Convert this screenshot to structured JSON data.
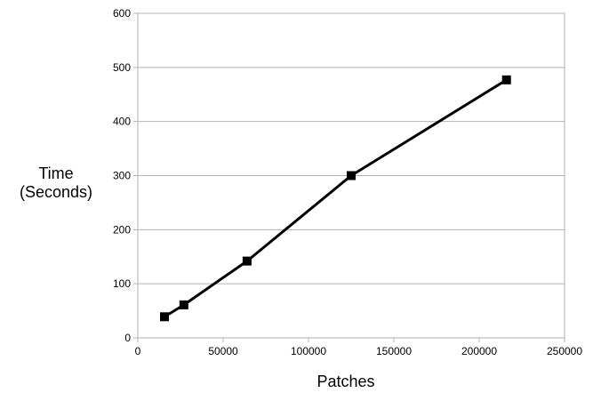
{
  "chart_data": {
    "type": "line",
    "title": "",
    "xlabel": "Patches",
    "ylabel_lines": [
      "Time",
      "(Seconds)"
    ],
    "xlim": [
      0,
      250000
    ],
    "ylim": [
      0,
      600
    ],
    "x_ticks": [
      0,
      50000,
      100000,
      150000,
      200000,
      250000
    ],
    "y_ticks": [
      0,
      100,
      200,
      300,
      400,
      500,
      600
    ],
    "grid": "horizontal",
    "legend": "none",
    "series": [
      {
        "color": "#000000",
        "marker": "square",
        "points": [
          {
            "x": 15625,
            "y": 39
          },
          {
            "x": 27000,
            "y": 61
          },
          {
            "x": 64000,
            "y": 142
          },
          {
            "x": 125000,
            "y": 300
          },
          {
            "x": 216000,
            "y": 477
          }
        ]
      }
    ]
  }
}
